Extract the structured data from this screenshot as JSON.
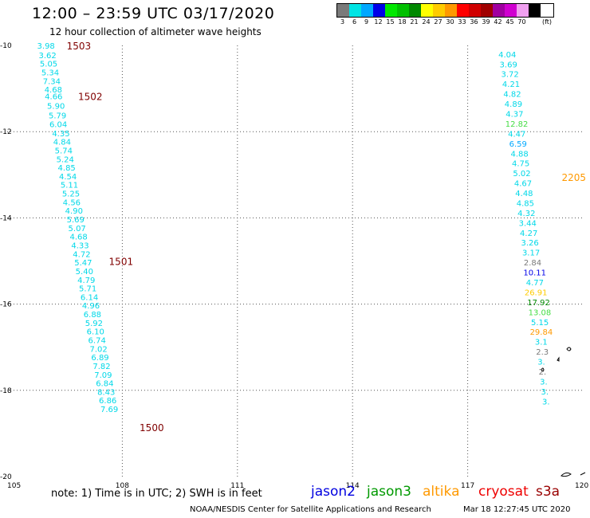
{
  "header": {
    "title": "12:00 – 23:59 UTC 03/17/2020",
    "subtitle": "12 hour collection of altimeter wave heights"
  },
  "legend": {
    "unit": "(ft)",
    "swatches": [
      {
        "label": "3",
        "color": "#7a7a7a"
      },
      {
        "label": "6",
        "color": "#00e4e4"
      },
      {
        "label": "9",
        "color": "#00a8ff"
      },
      {
        "label": "12",
        "color": "#0000e8"
      },
      {
        "label": "15",
        "color": "#00e800"
      },
      {
        "label": "18",
        "color": "#00c000"
      },
      {
        "label": "21",
        "color": "#008800"
      },
      {
        "label": "24",
        "color": "#ffff00"
      },
      {
        "label": "27",
        "color": "#ffcc00"
      },
      {
        "label": "30",
        "color": "#ff9900"
      },
      {
        "label": "33",
        "color": "#ff0000"
      },
      {
        "label": "36",
        "color": "#d00000"
      },
      {
        "label": "39",
        "color": "#a00000"
      },
      {
        "label": "42",
        "color": "#a000a0"
      },
      {
        "label": "45",
        "color": "#d000d0"
      },
      {
        "label": "70",
        "color": "#f0a0f0"
      },
      {
        "label": "",
        "color": "#000000"
      }
    ]
  },
  "map": {
    "lon_ticks": [
      "105",
      "108",
      "111",
      "114",
      "117",
      "120"
    ],
    "lat_ticks": [
      "-10",
      "-12",
      "-14",
      "-16",
      "-18",
      "-20"
    ],
    "track_west": {
      "color": "#00d8e8",
      "time_color": "#800000",
      "times": [
        {
          "text": "1503",
          "lon": 106.55,
          "lat": -10.0
        },
        {
          "text": "1502",
          "lon": 106.85,
          "lat": -11.17
        },
        {
          "text": "1501",
          "lon": 107.65,
          "lat": -15.0
        },
        {
          "text": "1500",
          "lon": 108.45,
          "lat": -18.85
        }
      ],
      "points": [
        {
          "v": "3.98",
          "lon": 105.78,
          "lat": -10.0
        },
        {
          "v": "3.62",
          "lon": 105.82,
          "lat": -10.22
        },
        {
          "v": "5.05",
          "lon": 105.85,
          "lat": -10.42
        },
        {
          "v": "5.34",
          "lon": 105.89,
          "lat": -10.62
        },
        {
          "v": "7.34",
          "lon": 105.93,
          "lat": -10.82
        },
        {
          "v": "4.68",
          "lon": 105.97,
          "lat": -11.02
        },
        {
          "v": "4.66",
          "lon": 105.98,
          "lat": -11.17
        },
        {
          "v": "5.90",
          "lon": 106.04,
          "lat": -11.4
        },
        {
          "v": "5.79",
          "lon": 106.08,
          "lat": -11.62
        },
        {
          "v": "6.04",
          "lon": 106.1,
          "lat": -11.82
        },
        {
          "v": "4.35",
          "lon": 106.17,
          "lat": -12.03
        },
        {
          "v": "4.84",
          "lon": 106.2,
          "lat": -12.23
        },
        {
          "v": "5.74",
          "lon": 106.24,
          "lat": -12.43
        },
        {
          "v": "5.24",
          "lon": 106.28,
          "lat": -12.63
        },
        {
          "v": "4.85",
          "lon": 106.32,
          "lat": -12.83
        },
        {
          "v": "4.54",
          "lon": 106.35,
          "lat": -13.03
        },
        {
          "v": "5.11",
          "lon": 106.39,
          "lat": -13.23
        },
        {
          "v": "5.25",
          "lon": 106.43,
          "lat": -13.43
        },
        {
          "v": "4.56",
          "lon": 106.45,
          "lat": -13.63
        },
        {
          "v": "4.90",
          "lon": 106.51,
          "lat": -13.83
        },
        {
          "v": "5.69",
          "lon": 106.55,
          "lat": -14.03
        },
        {
          "v": "5.07",
          "lon": 106.59,
          "lat": -14.23
        },
        {
          "v": "4.68",
          "lon": 106.63,
          "lat": -14.43
        },
        {
          "v": "4.33",
          "lon": 106.67,
          "lat": -14.63
        },
        {
          "v": "4.72",
          "lon": 106.71,
          "lat": -14.83
        },
        {
          "v": "5.47",
          "lon": 106.75,
          "lat": -15.03
        },
        {
          "v": "5.40",
          "lon": 106.78,
          "lat": -15.23
        },
        {
          "v": "4.79",
          "lon": 106.83,
          "lat": -15.43
        },
        {
          "v": "5.71",
          "lon": 106.87,
          "lat": -15.63
        },
        {
          "v": "6.14",
          "lon": 106.91,
          "lat": -15.83
        },
        {
          "v": "4.96",
          "lon": 106.95,
          "lat": -16.03
        },
        {
          "v": "6.88",
          "lon": 106.99,
          "lat": -16.23
        },
        {
          "v": "5.92",
          "lon": 107.03,
          "lat": -16.43
        },
        {
          "v": "6.10",
          "lon": 107.07,
          "lat": -16.63
        },
        {
          "v": "6.74",
          "lon": 107.11,
          "lat": -16.83
        },
        {
          "v": "7.02",
          "lon": 107.15,
          "lat": -17.03
        },
        {
          "v": "6.89",
          "lon": 107.19,
          "lat": -17.23
        },
        {
          "v": "7.82",
          "lon": 107.23,
          "lat": -17.43
        },
        {
          "v": "7.09",
          "lon": 107.27,
          "lat": -17.63
        },
        {
          "v": "6.84",
          "lon": 107.31,
          "lat": -17.83
        },
        {
          "v": "8.43",
          "lon": 107.35,
          "lat": -18.03
        },
        {
          "v": "6.86",
          "lon": 107.39,
          "lat": -18.23
        },
        {
          "v": "7.69",
          "lon": 107.43,
          "lat": -18.43
        }
      ]
    },
    "track_east": {
      "time_color": "#ff9900",
      "times": [
        {
          "text": "2205",
          "lon": 119.45,
          "lat": -13.05
        }
      ],
      "points": [
        {
          "v": "4.04",
          "lon": 117.8,
          "lat": -10.2,
          "c": "#00d8e8"
        },
        {
          "v": "3.69",
          "lon": 117.83,
          "lat": -10.43,
          "c": "#00d8e8"
        },
        {
          "v": "3.72",
          "lon": 117.87,
          "lat": -10.66,
          "c": "#00d8e8"
        },
        {
          "v": "4.21",
          "lon": 117.9,
          "lat": -10.89,
          "c": "#00d8e8"
        },
        {
          "v": "4.82",
          "lon": 117.93,
          "lat": -11.12,
          "c": "#00d8e8"
        },
        {
          "v": "4.89",
          "lon": 117.96,
          "lat": -11.35,
          "c": "#00d8e8"
        },
        {
          "v": "4.37",
          "lon": 117.99,
          "lat": -11.58,
          "c": "#00d8e8"
        },
        {
          "v": "12.82",
          "lon": 117.98,
          "lat": -11.81,
          "c": "#44dd44"
        },
        {
          "v": "4.47",
          "lon": 118.05,
          "lat": -12.04,
          "c": "#00d8e8"
        },
        {
          "v": "6.59",
          "lon": 118.08,
          "lat": -12.27,
          "c": "#00a8ff"
        },
        {
          "v": "4.88",
          "lon": 118.12,
          "lat": -12.5,
          "c": "#00d8e8"
        },
        {
          "v": "4.75",
          "lon": 118.15,
          "lat": -12.73,
          "c": "#00d8e8"
        },
        {
          "v": "5.02",
          "lon": 118.18,
          "lat": -12.96,
          "c": "#00d8e8"
        },
        {
          "v": "4.67",
          "lon": 118.21,
          "lat": -13.19,
          "c": "#00d8e8"
        },
        {
          "v": "4.48",
          "lon": 118.24,
          "lat": -13.42,
          "c": "#00d8e8"
        },
        {
          "v": "4.85",
          "lon": 118.27,
          "lat": -13.65,
          "c": "#00d8e8"
        },
        {
          "v": "4.32",
          "lon": 118.3,
          "lat": -13.88,
          "c": "#00d8e8"
        },
        {
          "v": "3.44",
          "lon": 118.33,
          "lat": -14.11,
          "c": "#00d8e8"
        },
        {
          "v": "4.27",
          "lon": 118.36,
          "lat": -14.34,
          "c": "#00d8e8"
        },
        {
          "v": "3.26",
          "lon": 118.39,
          "lat": -14.57,
          "c": "#00d8e8"
        },
        {
          "v": "3.17",
          "lon": 118.42,
          "lat": -14.8,
          "c": "#00d8e8"
        },
        {
          "v": "2.84",
          "lon": 118.46,
          "lat": -15.03,
          "c": "#7a7a7a"
        },
        {
          "v": "10.11",
          "lon": 118.45,
          "lat": -15.26,
          "c": "#0000e8"
        },
        {
          "v": "4.77",
          "lon": 118.52,
          "lat": -15.49,
          "c": "#00d8e8"
        },
        {
          "v": "26.91",
          "lon": 118.48,
          "lat": -15.72,
          "c": "#ffcc00"
        },
        {
          "v": "17.92",
          "lon": 118.55,
          "lat": -15.95,
          "c": "#008800"
        },
        {
          "v": "13.08",
          "lon": 118.58,
          "lat": -16.18,
          "c": "#44dd44"
        },
        {
          "v": "5.15",
          "lon": 118.65,
          "lat": -16.41,
          "c": "#00d8e8"
        },
        {
          "v": "29.84",
          "lon": 118.62,
          "lat": -16.64,
          "c": "#ff9900"
        },
        {
          "v": "3.1",
          "lon": 118.75,
          "lat": -16.87,
          "c": "#00d8e8"
        },
        {
          "v": "2.3",
          "lon": 118.78,
          "lat": -17.1,
          "c": "#7a7a7a"
        },
        {
          "v": "3.",
          "lon": 118.82,
          "lat": -17.33,
          "c": "#00d8e8"
        },
        {
          "v": "2.",
          "lon": 118.85,
          "lat": -17.56,
          "c": "#7a7a7a"
        },
        {
          "v": "3.",
          "lon": 118.88,
          "lat": -17.79,
          "c": "#00d8e8"
        },
        {
          "v": "3.",
          "lon": 118.91,
          "lat": -18.02,
          "c": "#00d8e8"
        },
        {
          "v": "3.",
          "lon": 118.94,
          "lat": -18.25,
          "c": "#00d8e8"
        }
      ]
    }
  },
  "footer": {
    "note": "note:  1) Time is in UTC;  2) SWH is in feet",
    "satellites": [
      {
        "name": "jason2",
        "color": "#0000e0"
      },
      {
        "name": "jason3",
        "color": "#009900"
      },
      {
        "name": "altika",
        "color": "#ff9900"
      },
      {
        "name": "cryosat",
        "color": "#ee0000"
      },
      {
        "name": "s3a",
        "color": "#990000"
      }
    ],
    "credit": "NOAA/NESDIS Center for Satellite Applications and Research",
    "timestamp": "Mar 18 12:27:45 UTC 2020"
  }
}
